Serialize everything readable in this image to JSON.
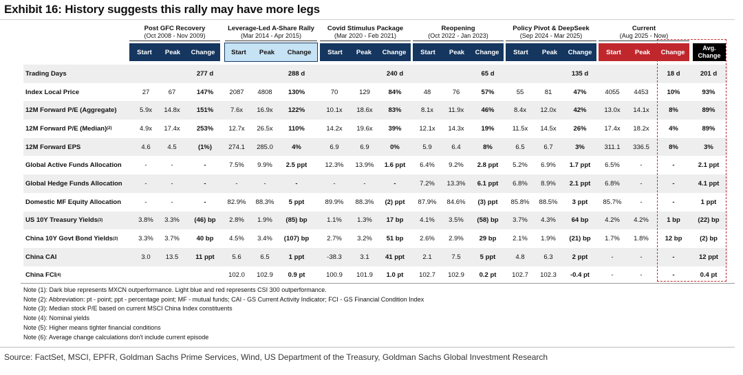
{
  "title": "Exhibit 16: History suggests this rally may have more legs",
  "groups": [
    {
      "name": "Post GFC Recovery",
      "period": "(Oct 2008 - Nov 2009)"
    },
    {
      "name": "Leverage-Led A-Share Rally",
      "period": "(Mar 2014 - Apr 2015)"
    },
    {
      "name": "Covid Stimulus Package",
      "period": "(Mar 2020 - Feb 2021)"
    },
    {
      "name": "Reopening",
      "period": "(Oct 2022 - Jan 2023)"
    },
    {
      "name": "Policy Pivot & DeepSeek",
      "period": "(Sep 2024 - Mar 2025)"
    },
    {
      "name": "Current",
      "period": "(Aug 2025 - Now)"
    }
  ],
  "col_labels": {
    "start": "Start",
    "peak": "Peak",
    "change": "Change",
    "avg_line1": "Avg.",
    "avg_line2": "Change"
  },
  "colors": {
    "dark_blue": "#14365f",
    "light_blue": "#c6e3f5",
    "red": "#c0272d",
    "black": "#000000"
  },
  "rows": [
    {
      "label": "Trading Days",
      "sup": "",
      "cells": [
        "",
        "",
        "277 d",
        "",
        "",
        "288 d",
        "",
        "",
        "240 d",
        "",
        "",
        "65 d",
        "",
        "",
        "135 d",
        "",
        "",
        "18 d"
      ],
      "avg": "201 d"
    },
    {
      "label": "Index Local Price",
      "sup": "",
      "cells": [
        "27",
        "67",
        "147%",
        "2087",
        "4808",
        "130%",
        "70",
        "129",
        "84%",
        "48",
        "76",
        "57%",
        "55",
        "81",
        "47%",
        "4055",
        "4453",
        "10%"
      ],
      "avg": "93%"
    },
    {
      "label": "12M Forward P/E (Aggregate)",
      "sup": "",
      "cells": [
        "5.9x",
        "14.8x",
        "151%",
        "7.6x",
        "16.9x",
        "122%",
        "10.1x",
        "18.6x",
        "83%",
        "8.1x",
        "11.9x",
        "46%",
        "8.4x",
        "12.0x",
        "42%",
        "13.0x",
        "14.1x",
        "8%"
      ],
      "avg": "89%"
    },
    {
      "label": "12M Forward P/E (Median)",
      "sup": "(2)",
      "cells": [
        "4.9x",
        "17.4x",
        "253%",
        "12.7x",
        "26.5x",
        "110%",
        "14.2x",
        "19.6x",
        "39%",
        "12.1x",
        "14.3x",
        "19%",
        "11.5x",
        "14.5x",
        "26%",
        "17.4x",
        "18.2x",
        "4%"
      ],
      "avg": "89%"
    },
    {
      "label": "12M Forward EPS",
      "sup": "",
      "cells": [
        "4.6",
        "4.5",
        "(1%)",
        "274.1",
        "285.0",
        "4%",
        "6.9",
        "6.9",
        "0%",
        "5.9",
        "6.4",
        "8%",
        "6.5",
        "6.7",
        "3%",
        "311.1",
        "336.5",
        "8%"
      ],
      "avg": "3%"
    },
    {
      "label": "Global Active Funds Allocation",
      "sup": "",
      "cells": [
        "-",
        "-",
        "-",
        "7.5%",
        "9.9%",
        "2.5 ppt",
        "12.3%",
        "13.9%",
        "1.6 ppt",
        "6.4%",
        "9.2%",
        "2.8 ppt",
        "5.2%",
        "6.9%",
        "1.7 ppt",
        "6.5%",
        "-",
        "-"
      ],
      "avg": "2.1 ppt"
    },
    {
      "label": "Global Hedge Funds Allocation",
      "sup": "",
      "cells": [
        "-",
        "-",
        "-",
        "-",
        "-",
        "-",
        "-",
        "-",
        "-",
        "7.2%",
        "13.3%",
        "6.1 ppt",
        "6.8%",
        "8.9%",
        "2.1 ppt",
        "6.8%",
        "-",
        "-"
      ],
      "avg": "4.1 ppt"
    },
    {
      "label": "Domestic MF Equity Allocation",
      "sup": "",
      "cells": [
        "-",
        "-",
        "-",
        "82.9%",
        "88.3%",
        "5 ppt",
        "89.9%",
        "88.3%",
        "(2) ppt",
        "87.9%",
        "84.6%",
        "(3) ppt",
        "85.8%",
        "88.5%",
        "3 ppt",
        "85.7%",
        "-",
        "-"
      ],
      "avg": "1 ppt"
    },
    {
      "label": "US 10Y Treasury Yields",
      "sup": "(3)",
      "cells": [
        "3.8%",
        "3.3%",
        "(46) bp",
        "2.8%",
        "1.9%",
        "(85) bp",
        "1.1%",
        "1.3%",
        "17 bp",
        "4.1%",
        "3.5%",
        "(58) bp",
        "3.7%",
        "4.3%",
        "64 bp",
        "4.2%",
        "4.2%",
        "1 bp"
      ],
      "avg": "(22) bp"
    },
    {
      "label": "China 10Y Govt Bond Yields",
      "sup": "(3)",
      "cells": [
        "3.3%",
        "3.7%",
        "40 bp",
        "4.5%",
        "3.4%",
        "(107) bp",
        "2.7%",
        "3.2%",
        "51 bp",
        "2.6%",
        "2.9%",
        "29 bp",
        "2.1%",
        "1.9%",
        "(21) bp",
        "1.7%",
        "1.8%",
        "12 bp"
      ],
      "avg": "(2) bp"
    },
    {
      "label": "China CAI",
      "sup": "",
      "cells": [
        "3.0",
        "13.5",
        "11 ppt",
        "5.6",
        "6.5",
        "1 ppt",
        "-38.3",
        "3.1",
        "41 ppt",
        "2.1",
        "7.5",
        "5 ppt",
        "4.8",
        "6.3",
        "2 ppt",
        "-",
        "-",
        "-"
      ],
      "avg": "12 ppt"
    },
    {
      "label": "China FCI",
      "sup": "(4)",
      "cells": [
        "",
        "",
        "",
        "102.0",
        "102.9",
        "0.9 pt",
        "100.9",
        "101.9",
        "1.0 pt",
        "102.7",
        "102.9",
        "0.2 pt",
        "102.7",
        "102.3",
        "-0.4 pt",
        "-",
        "-",
        "-"
      ],
      "avg": "0.4 pt"
    }
  ],
  "notes": [
    "Note (1): Dark blue represents MXCN outperformance. Light blue and red represents CSI 300 outperformance.",
    "Note (2): Abbreviation: pt - point; ppt - percentage point; MF - mutual funds; CAI - GS Current Activity Indicator; FCI - GS Financial Condition Index",
    "Note (3): Median stock P/E based on current MSCI China Index constituents",
    "Note (4): Nominal yields",
    "Note (5): Higher means tighter financial conditions",
    "Note (6): Average change calculations don't include current episode"
  ],
  "source": "Source: FactSet, MSCI, EPFR, Goldman Sachs Prime Services, Wind, US Department of the Treasury, Goldman Sachs Global Investment Research"
}
